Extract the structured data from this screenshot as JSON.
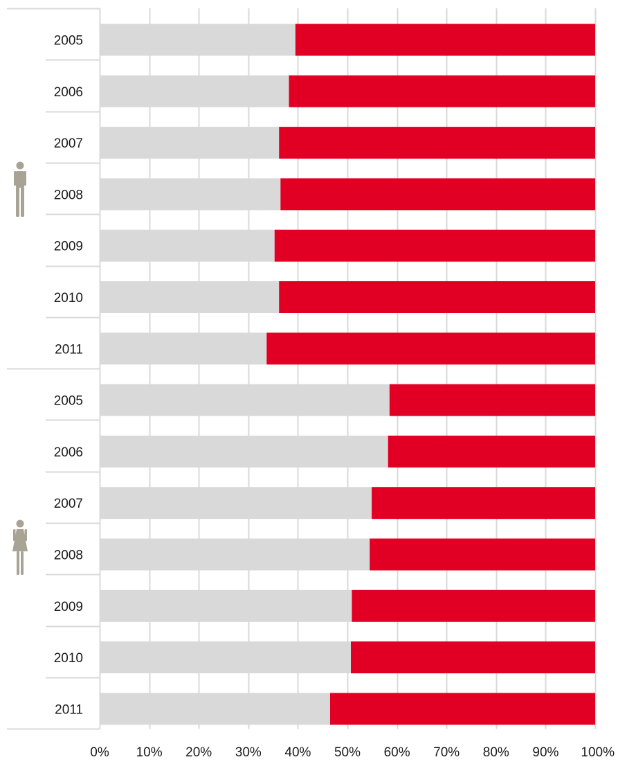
{
  "chart_data": {
    "type": "bar",
    "orientation": "horizontal",
    "stacked": true,
    "groups": [
      {
        "icon": "man-icon",
        "categories": [
          "2005",
          "2006",
          "2007",
          "2008",
          "2009",
          "2010",
          "2011"
        ]
      },
      {
        "icon": "woman-icon",
        "categories": [
          "2005",
          "2006",
          "2007",
          "2008",
          "2009",
          "2010",
          "2011"
        ]
      }
    ],
    "series": [
      {
        "color": "#d9d9d9",
        "values": [
          39.5,
          38.2,
          36.2,
          36.5,
          35.3,
          36.2,
          33.7,
          58.5,
          58.2,
          54.9,
          54.5,
          50.9,
          50.7,
          46.5
        ]
      },
      {
        "color": "#e10024",
        "values": [
          60.5,
          61.8,
          63.8,
          63.5,
          64.7,
          63.8,
          66.3,
          41.5,
          41.8,
          45.1,
          45.5,
          49.1,
          49.3,
          53.5
        ]
      }
    ],
    "x_ticks": [
      "0%",
      "10%",
      "20%",
      "30%",
      "40%",
      "50%",
      "60%",
      "70%",
      "80%",
      "90%",
      "100%"
    ],
    "xlim": [
      0,
      100
    ],
    "grid": true,
    "colors": {
      "grid": "#d9d9d9",
      "icon": "#a8a395"
    }
  }
}
